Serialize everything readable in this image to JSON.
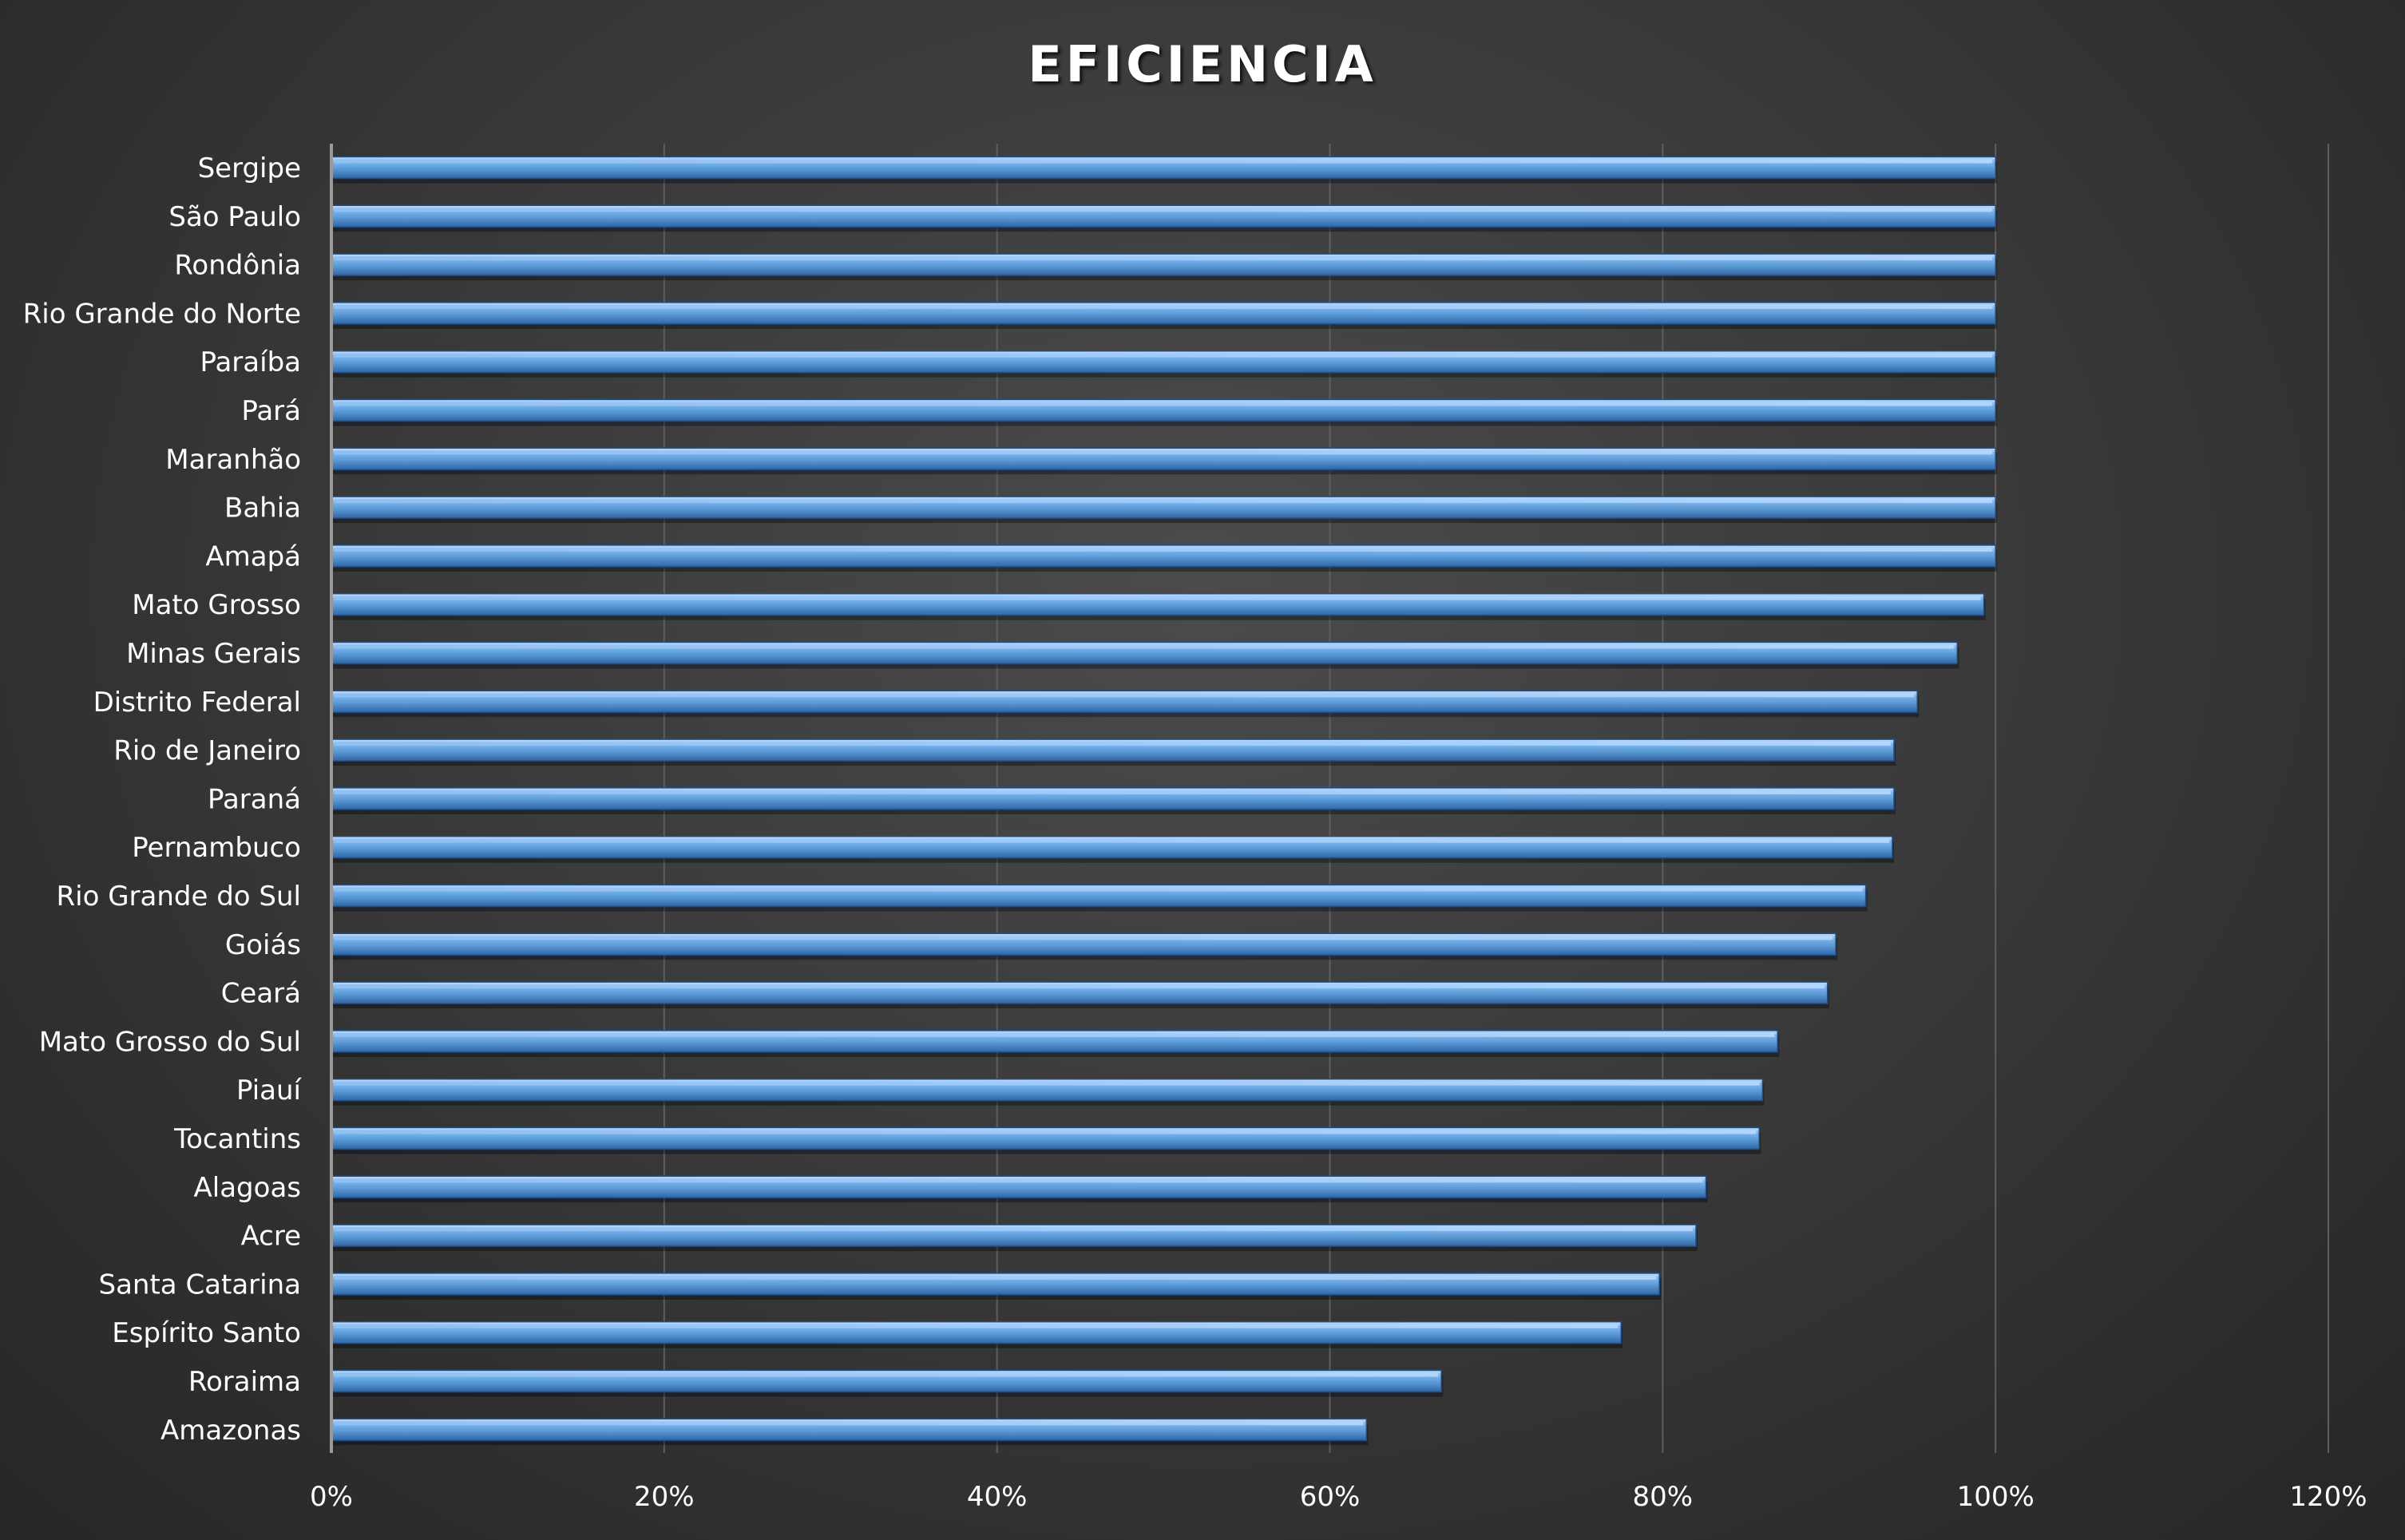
{
  "chart_data": {
    "type": "bar",
    "orientation": "horizontal",
    "title": "EFICIENCIA",
    "categories": [
      "Sergipe",
      "São Paulo",
      "Rondônia",
      "Rio Grande do Norte",
      "Paraíba",
      "Pará",
      "Maranhão",
      "Bahia",
      "Amapá",
      "Mato Grosso",
      "Minas Gerais",
      "Distrito Federal",
      "Rio de Janeiro",
      "Paraná",
      "Pernambuco",
      "Rio Grande do Sul",
      "Goiás",
      "Ceará",
      "Mato Grosso do Sul",
      "Piauí",
      "Tocantins",
      "Alagoas",
      "Acre",
      "Santa Catarina",
      "Espírito Santo",
      "Roraima",
      "Amazonas"
    ],
    "values": [
      100,
      100,
      100,
      100,
      100,
      100,
      100,
      100,
      100,
      99.3,
      97.7,
      95.3,
      93.9,
      93.9,
      93.8,
      92.2,
      90.4,
      89.9,
      86.9,
      86.0,
      85.8,
      82.6,
      82.0,
      79.8,
      77.5,
      66.7,
      62.2
    ],
    "xlim": [
      0,
      120
    ],
    "x_ticks": [
      "0%",
      "20%",
      "40%",
      "60%",
      "80%",
      "100%",
      "120%"
    ],
    "x_tick_values": [
      0,
      20,
      40,
      60,
      80,
      100,
      120
    ],
    "grid": true,
    "legend": "none",
    "colors": {
      "bar": "#5b9bd5",
      "bar_highlight": "#a9d0ff",
      "bar_shadow": "#2a5d97",
      "text": "#ffffff",
      "grid": "#5e5e5e",
      "axis": "#9a9a9a"
    }
  }
}
